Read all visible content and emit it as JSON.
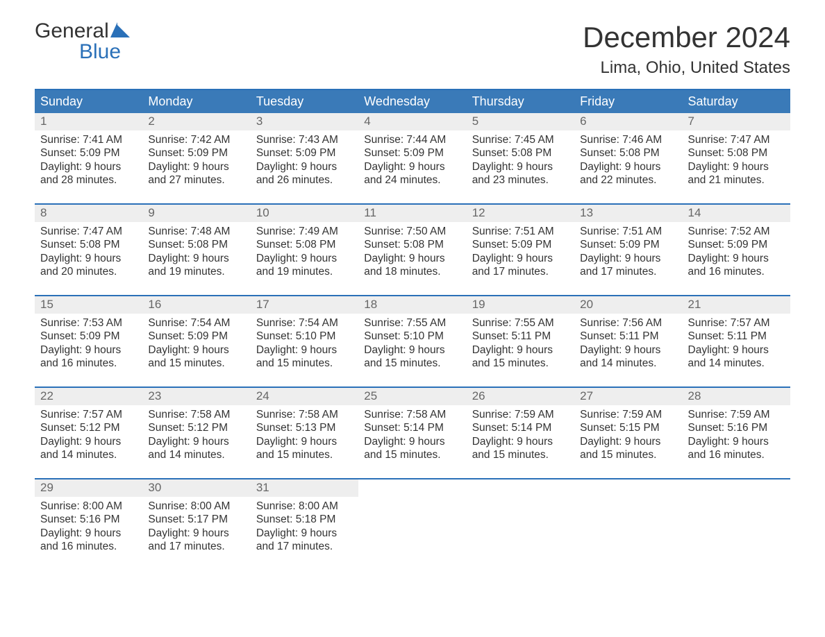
{
  "logo": {
    "text_top": "General",
    "text_bottom": "Blue",
    "color_top": "#333333",
    "color_bottom": "#2a70b8"
  },
  "title": "December 2024",
  "location": "Lima, Ohio, United States",
  "colors": {
    "header_bg": "#3a7ab8",
    "header_text": "#ffffff",
    "week_border": "#2a70b8",
    "daynum_bg": "#eeeeee",
    "daynum_text": "#666666",
    "body_text": "#333333",
    "page_bg": "#ffffff"
  },
  "day_labels": [
    "Sunday",
    "Monday",
    "Tuesday",
    "Wednesday",
    "Thursday",
    "Friday",
    "Saturday"
  ],
  "weeks": [
    [
      {
        "n": "1",
        "sunrise": "Sunrise: 7:41 AM",
        "sunset": "Sunset: 5:09 PM",
        "dl1": "Daylight: 9 hours",
        "dl2": "and 28 minutes."
      },
      {
        "n": "2",
        "sunrise": "Sunrise: 7:42 AM",
        "sunset": "Sunset: 5:09 PM",
        "dl1": "Daylight: 9 hours",
        "dl2": "and 27 minutes."
      },
      {
        "n": "3",
        "sunrise": "Sunrise: 7:43 AM",
        "sunset": "Sunset: 5:09 PM",
        "dl1": "Daylight: 9 hours",
        "dl2": "and 26 minutes."
      },
      {
        "n": "4",
        "sunrise": "Sunrise: 7:44 AM",
        "sunset": "Sunset: 5:09 PM",
        "dl1": "Daylight: 9 hours",
        "dl2": "and 24 minutes."
      },
      {
        "n": "5",
        "sunrise": "Sunrise: 7:45 AM",
        "sunset": "Sunset: 5:08 PM",
        "dl1": "Daylight: 9 hours",
        "dl2": "and 23 minutes."
      },
      {
        "n": "6",
        "sunrise": "Sunrise: 7:46 AM",
        "sunset": "Sunset: 5:08 PM",
        "dl1": "Daylight: 9 hours",
        "dl2": "and 22 minutes."
      },
      {
        "n": "7",
        "sunrise": "Sunrise: 7:47 AM",
        "sunset": "Sunset: 5:08 PM",
        "dl1": "Daylight: 9 hours",
        "dl2": "and 21 minutes."
      }
    ],
    [
      {
        "n": "8",
        "sunrise": "Sunrise: 7:47 AM",
        "sunset": "Sunset: 5:08 PM",
        "dl1": "Daylight: 9 hours",
        "dl2": "and 20 minutes."
      },
      {
        "n": "9",
        "sunrise": "Sunrise: 7:48 AM",
        "sunset": "Sunset: 5:08 PM",
        "dl1": "Daylight: 9 hours",
        "dl2": "and 19 minutes."
      },
      {
        "n": "10",
        "sunrise": "Sunrise: 7:49 AM",
        "sunset": "Sunset: 5:08 PM",
        "dl1": "Daylight: 9 hours",
        "dl2": "and 19 minutes."
      },
      {
        "n": "11",
        "sunrise": "Sunrise: 7:50 AM",
        "sunset": "Sunset: 5:08 PM",
        "dl1": "Daylight: 9 hours",
        "dl2": "and 18 minutes."
      },
      {
        "n": "12",
        "sunrise": "Sunrise: 7:51 AM",
        "sunset": "Sunset: 5:09 PM",
        "dl1": "Daylight: 9 hours",
        "dl2": "and 17 minutes."
      },
      {
        "n": "13",
        "sunrise": "Sunrise: 7:51 AM",
        "sunset": "Sunset: 5:09 PM",
        "dl1": "Daylight: 9 hours",
        "dl2": "and 17 minutes."
      },
      {
        "n": "14",
        "sunrise": "Sunrise: 7:52 AM",
        "sunset": "Sunset: 5:09 PM",
        "dl1": "Daylight: 9 hours",
        "dl2": "and 16 minutes."
      }
    ],
    [
      {
        "n": "15",
        "sunrise": "Sunrise: 7:53 AM",
        "sunset": "Sunset: 5:09 PM",
        "dl1": "Daylight: 9 hours",
        "dl2": "and 16 minutes."
      },
      {
        "n": "16",
        "sunrise": "Sunrise: 7:54 AM",
        "sunset": "Sunset: 5:09 PM",
        "dl1": "Daylight: 9 hours",
        "dl2": "and 15 minutes."
      },
      {
        "n": "17",
        "sunrise": "Sunrise: 7:54 AM",
        "sunset": "Sunset: 5:10 PM",
        "dl1": "Daylight: 9 hours",
        "dl2": "and 15 minutes."
      },
      {
        "n": "18",
        "sunrise": "Sunrise: 7:55 AM",
        "sunset": "Sunset: 5:10 PM",
        "dl1": "Daylight: 9 hours",
        "dl2": "and 15 minutes."
      },
      {
        "n": "19",
        "sunrise": "Sunrise: 7:55 AM",
        "sunset": "Sunset: 5:11 PM",
        "dl1": "Daylight: 9 hours",
        "dl2": "and 15 minutes."
      },
      {
        "n": "20",
        "sunrise": "Sunrise: 7:56 AM",
        "sunset": "Sunset: 5:11 PM",
        "dl1": "Daylight: 9 hours",
        "dl2": "and 14 minutes."
      },
      {
        "n": "21",
        "sunrise": "Sunrise: 7:57 AM",
        "sunset": "Sunset: 5:11 PM",
        "dl1": "Daylight: 9 hours",
        "dl2": "and 14 minutes."
      }
    ],
    [
      {
        "n": "22",
        "sunrise": "Sunrise: 7:57 AM",
        "sunset": "Sunset: 5:12 PM",
        "dl1": "Daylight: 9 hours",
        "dl2": "and 14 minutes."
      },
      {
        "n": "23",
        "sunrise": "Sunrise: 7:58 AM",
        "sunset": "Sunset: 5:12 PM",
        "dl1": "Daylight: 9 hours",
        "dl2": "and 14 minutes."
      },
      {
        "n": "24",
        "sunrise": "Sunrise: 7:58 AM",
        "sunset": "Sunset: 5:13 PM",
        "dl1": "Daylight: 9 hours",
        "dl2": "and 15 minutes."
      },
      {
        "n": "25",
        "sunrise": "Sunrise: 7:58 AM",
        "sunset": "Sunset: 5:14 PM",
        "dl1": "Daylight: 9 hours",
        "dl2": "and 15 minutes."
      },
      {
        "n": "26",
        "sunrise": "Sunrise: 7:59 AM",
        "sunset": "Sunset: 5:14 PM",
        "dl1": "Daylight: 9 hours",
        "dl2": "and 15 minutes."
      },
      {
        "n": "27",
        "sunrise": "Sunrise: 7:59 AM",
        "sunset": "Sunset: 5:15 PM",
        "dl1": "Daylight: 9 hours",
        "dl2": "and 15 minutes."
      },
      {
        "n": "28",
        "sunrise": "Sunrise: 7:59 AM",
        "sunset": "Sunset: 5:16 PM",
        "dl1": "Daylight: 9 hours",
        "dl2": "and 16 minutes."
      }
    ],
    [
      {
        "n": "29",
        "sunrise": "Sunrise: 8:00 AM",
        "sunset": "Sunset: 5:16 PM",
        "dl1": "Daylight: 9 hours",
        "dl2": "and 16 minutes."
      },
      {
        "n": "30",
        "sunrise": "Sunrise: 8:00 AM",
        "sunset": "Sunset: 5:17 PM",
        "dl1": "Daylight: 9 hours",
        "dl2": "and 17 minutes."
      },
      {
        "n": "31",
        "sunrise": "Sunrise: 8:00 AM",
        "sunset": "Sunset: 5:18 PM",
        "dl1": "Daylight: 9 hours",
        "dl2": "and 17 minutes."
      },
      {
        "empty": true
      },
      {
        "empty": true
      },
      {
        "empty": true
      },
      {
        "empty": true
      }
    ]
  ]
}
